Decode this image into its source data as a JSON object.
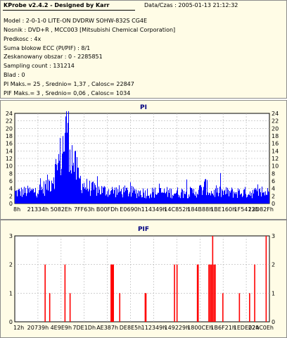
{
  "header": {
    "title": "KProbe v2.4.2 - Designed by Karr",
    "datetime_label": "Data/Czas : 2005-01-13 21:12:32"
  },
  "info_lines": [
    "Model : 2-0-1-0 LITE-ON DVDRW SOHW-832S  CG4E",
    "Nosnik : DVD+R , MCC003 [Mitsubishi Chemical Corporation]",
    "Predkosc : 4x",
    "Suma blokow ECC (PI/PIF) : 8/1",
    "Zeskanowany obszar : 0 - 2285851",
    "Sampling count : 131214",
    "Blad : 0",
    "PI Maks.= 25 , Srednio= 1,37 , Calosc= 22847",
    "PIF Maks.= 3 , Srednio= 0,06 , Calosc= 1034"
  ],
  "chart_data": [
    {
      "type": "bar",
      "title": "PI",
      "ylim": [
        0,
        24
      ],
      "y_ticks": [
        "0",
        "2",
        "4",
        "6",
        "8",
        "10",
        "12",
        "14",
        "16",
        "18",
        "20",
        "22",
        "24"
      ],
      "x_tick_labels": [
        "8h",
        "21334h",
        "5082Eh",
        "7FF63h",
        "B00FDh",
        "E0690h",
        "114349h",
        "14C852h",
        "184B88h",
        "1BE160h",
        "1F5413h",
        "22D82Fh"
      ],
      "series": [
        {
          "color": "#0000ff"
        }
      ],
      "profile": [
        [
          0,
          3.0
        ],
        [
          0.07,
          3.3
        ],
        [
          0.11,
          4.0
        ],
        [
          0.14,
          6.0
        ],
        [
          0.165,
          10.0
        ],
        [
          0.18,
          13.0
        ],
        [
          0.19,
          16.0
        ],
        [
          0.2,
          20.0
        ],
        [
          0.205,
          24.5
        ],
        [
          0.21,
          20.0
        ],
        [
          0.22,
          14.0
        ],
        [
          0.235,
          10.0
        ],
        [
          0.25,
          7.0
        ],
        [
          0.27,
          5.0
        ],
        [
          0.3,
          4.0
        ],
        [
          0.35,
          3.5
        ],
        [
          0.5,
          3.0
        ],
        [
          0.7,
          3.0
        ],
        [
          0.74,
          4.0
        ],
        [
          0.75,
          5.0
        ],
        [
          0.755,
          4.0
        ],
        [
          0.77,
          3.0
        ],
        [
          1.0,
          3.0
        ]
      ],
      "peak_max": 25,
      "background_color": "#ffffff",
      "grid": true
    },
    {
      "type": "bar",
      "title": "PIF",
      "ylim": [
        0,
        3
      ],
      "y_ticks": [
        "0",
        "1",
        "2",
        "3"
      ],
      "x_tick_labels": [
        "12h",
        "20739h",
        "4E9E9h",
        "7DE1Dh",
        "AE387h",
        "DE8E5h",
        "112349h",
        "149229h",
        "1800CEh",
        "1B6F21h",
        "1EDE02h",
        "224C0Eh"
      ],
      "series": [
        {
          "color": "#ff0000"
        }
      ],
      "bars": [
        {
          "x": 0.117,
          "v": 2
        },
        {
          "x": 0.135,
          "v": 1
        },
        {
          "x": 0.195,
          "v": 2
        },
        {
          "x": 0.215,
          "v": 1
        },
        {
          "x": 0.376,
          "v": 2
        },
        {
          "x": 0.379,
          "v": 2
        },
        {
          "x": 0.382,
          "v": 2
        },
        {
          "x": 0.385,
          "v": 2
        },
        {
          "x": 0.41,
          "v": 1
        },
        {
          "x": 0.51,
          "v": 1
        },
        {
          "x": 0.513,
          "v": 1
        },
        {
          "x": 0.625,
          "v": 2
        },
        {
          "x": 0.635,
          "v": 2
        },
        {
          "x": 0.715,
          "v": 2
        },
        {
          "x": 0.718,
          "v": 2
        },
        {
          "x": 0.76,
          "v": 2
        },
        {
          "x": 0.765,
          "v": 2
        },
        {
          "x": 0.77,
          "v": 2
        },
        {
          "x": 0.775,
          "v": 3
        },
        {
          "x": 0.78,
          "v": 2
        },
        {
          "x": 0.785,
          "v": 2
        },
        {
          "x": 0.815,
          "v": 1
        },
        {
          "x": 0.88,
          "v": 1
        },
        {
          "x": 0.92,
          "v": 1
        },
        {
          "x": 0.94,
          "v": 2
        },
        {
          "x": 0.985,
          "v": 3
        }
      ],
      "background_color": "#ffffff",
      "grid": true
    }
  ]
}
